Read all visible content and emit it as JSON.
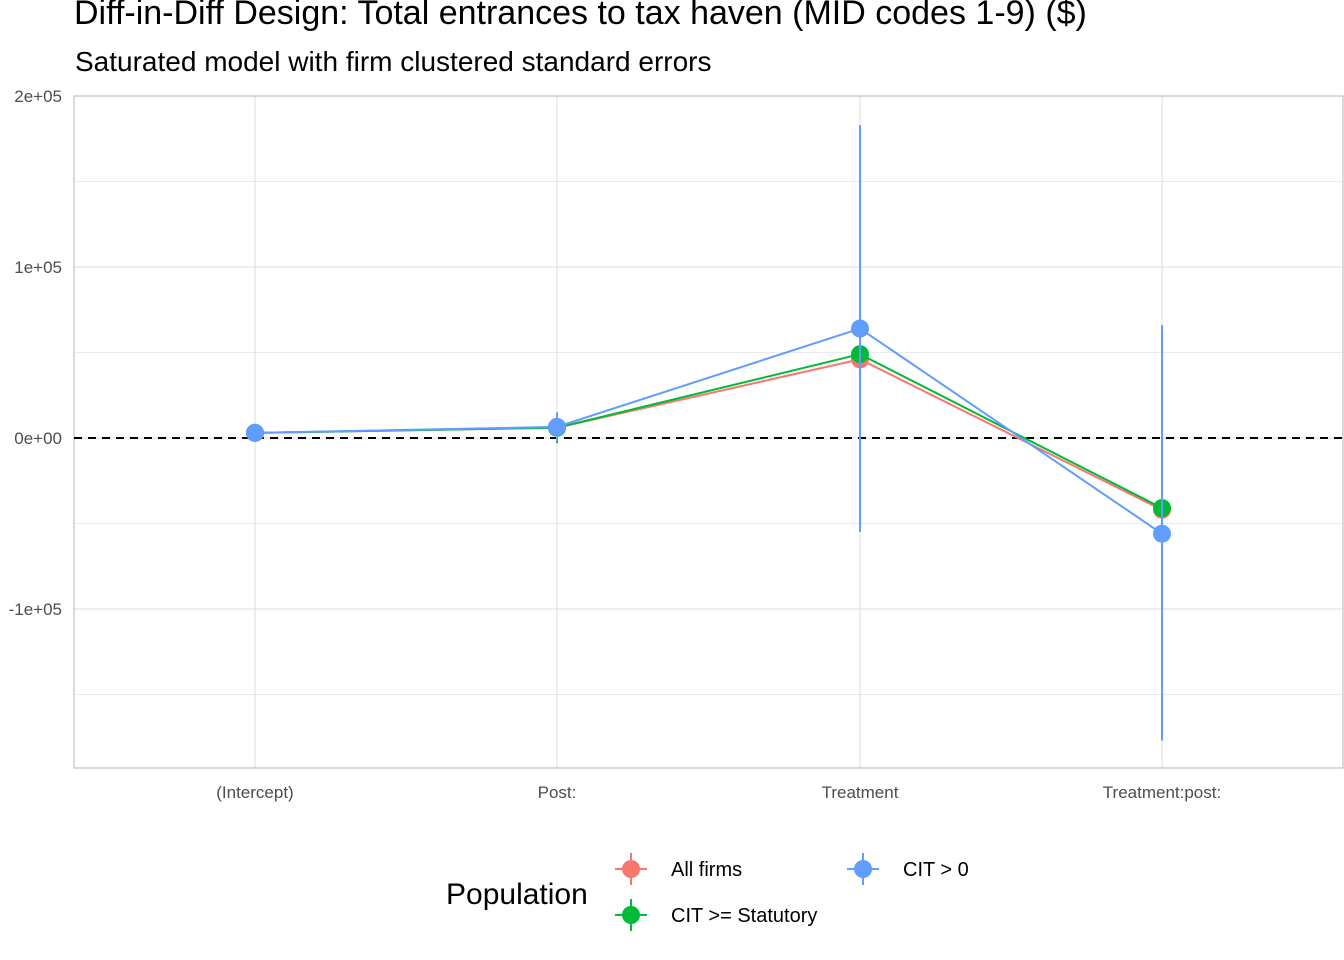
{
  "chart_data": {
    "type": "line",
    "title": "Diff-in-Diff Design: Total entrances to tax haven (MID codes 1-9)  ($)",
    "subtitle": "Saturated model with firm clustered standard errors",
    "xlabel": "",
    "ylabel": "",
    "categories": [
      "(Intercept)",
      "Post:",
      "Treatment",
      "Treatment:post:"
    ],
    "y_ticks": [
      -100000,
      0,
      100000,
      200000
    ],
    "y_tick_labels": [
      "-1e+05",
      "0e+00",
      "1e+05",
      "2e+05"
    ],
    "ylim": [
      -193000,
      200000
    ],
    "grid": true,
    "reference_line": {
      "y": 0,
      "style": "dashed"
    },
    "legend": {
      "title": "Population",
      "position": "bottom"
    },
    "series": [
      {
        "name": "All firms",
        "color": "#F8766D",
        "values": [
          3000,
          6000,
          46000,
          -42000
        ],
        "lower": [
          2000,
          3000,
          40000,
          -44000
        ],
        "upper": [
          4000,
          9000,
          52000,
          -40000
        ]
      },
      {
        "name": "CIT >= Statutory",
        "color": "#00BA38",
        "values": [
          3000,
          6000,
          49000,
          -41000
        ],
        "lower": [
          1500,
          -3000,
          43000,
          -43000
        ],
        "upper": [
          4500,
          14000,
          55000,
          -39000
        ]
      },
      {
        "name": "CIT > 0",
        "color": "#619CFF",
        "values": [
          3000,
          6500,
          64000,
          -56000
        ],
        "lower": [
          1000,
          -2000,
          -55000,
          -177000
        ],
        "upper": [
          5000,
          15000,
          183000,
          66000
        ]
      }
    ]
  }
}
